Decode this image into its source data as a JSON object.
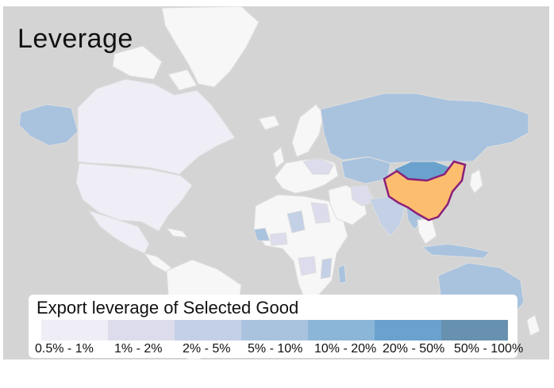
{
  "title": "Leverage",
  "legend": {
    "title": "Export leverage of Selected Good",
    "bins": [
      {
        "label": "0.5% - 1%",
        "color": "#efedf5"
      },
      {
        "label": "1% - 2%",
        "color": "#dcdcec"
      },
      {
        "label": "2% - 5%",
        "color": "#c3d0e6"
      },
      {
        "label": "5% - 10%",
        "color": "#a9c3df"
      },
      {
        "label": "10% - 20%",
        "color": "#8bb6d8"
      },
      {
        "label": "20% - 50%",
        "color": "#6aa2cd"
      },
      {
        "label": "50% - 100%",
        "color": "#6891b0"
      }
    ]
  },
  "map": {
    "ocean_color": "#d4d4d4",
    "land_color": "#f7f7f7",
    "highlight_color": "#fdbd6e",
    "highlight_outline": "#8b1f7a",
    "regions": [
      {
        "name": "China",
        "category": "selected"
      },
      {
        "name": "Russia",
        "category": "5% - 10%"
      },
      {
        "name": "Mongolia",
        "category": "20% - 50%"
      },
      {
        "name": "Kazakhstan",
        "category": "5% - 10%"
      },
      {
        "name": "Australia",
        "category": "5% - 10%"
      },
      {
        "name": "Indonesia",
        "category": "5% - 10%"
      },
      {
        "name": "Myanmar",
        "category": "5% - 10%"
      },
      {
        "name": "India",
        "category": "2% - 5%"
      },
      {
        "name": "Pakistan",
        "category": "2% - 5%"
      },
      {
        "name": "Iran",
        "category": "1% - 2%"
      },
      {
        "name": "United States",
        "category": "0.5% - 1%"
      },
      {
        "name": "Mexico",
        "category": "0.5% - 1%"
      },
      {
        "name": "Canada",
        "category": "0.5% - 1%"
      },
      {
        "name": "Alaska",
        "category": "5% - 10%"
      },
      {
        "name": "Sudan",
        "category": "1% - 2%"
      },
      {
        "name": "Niger",
        "category": "2% - 5%"
      },
      {
        "name": "Guinea",
        "category": "5% - 10%"
      },
      {
        "name": "Angola",
        "category": "1% - 2%"
      },
      {
        "name": "Madagascar",
        "category": "5% - 10%"
      },
      {
        "name": "Mozambique",
        "category": "2% - 5%"
      }
    ]
  }
}
